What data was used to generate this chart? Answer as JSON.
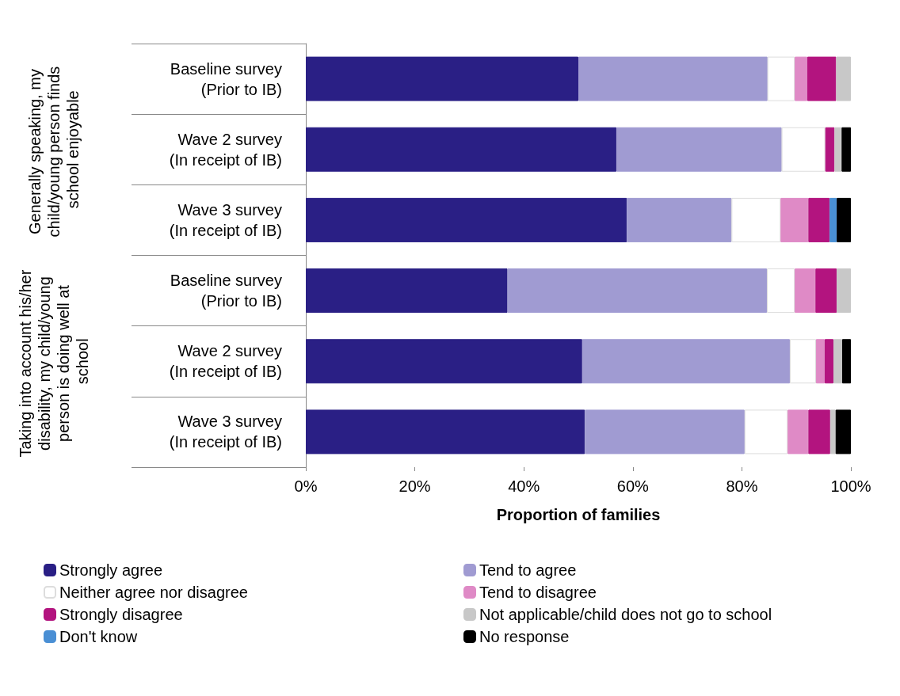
{
  "chart_data": {
    "type": "bar",
    "orientation": "horizontal",
    "stacked": true,
    "categories": [
      "Baseline survey\n(Prior to IB)",
      "Wave 2 survey\n(In receipt of IB)",
      "Wave 3 survey\n(In receipt of IB)",
      "Baseline survey\n(Prior to IB)",
      "Wave 2 survey\n(In receipt of IB)",
      "Wave 3 survey\n(In receipt of IB)"
    ],
    "series": [
      {
        "name": "Strongly agree",
        "color": "#2a1f85",
        "values": [
          50,
          57,
          58.9,
          37,
          50.7,
          51.2
        ]
      },
      {
        "name": "Tend to agree",
        "color": "#a09bd2",
        "values": [
          34.7,
          30.3,
          19.2,
          47.6,
          38.1,
          29.3
        ]
      },
      {
        "name": "Neither agree nor disagree",
        "color": "#ffffff",
        "values": [
          5,
          8,
          9,
          5.1,
          4.8,
          7.9
        ]
      },
      {
        "name": "Tend to disagree",
        "color": "#df8ac6",
        "values": [
          2.3,
          null,
          5.1,
          3.8,
          1.6,
          3.8
        ]
      },
      {
        "name": "Strongly disagree",
        "color": "#b3147f",
        "values": [
          5.3,
          1.7,
          3.9,
          3.9,
          1.6,
          4
        ]
      },
      {
        "name": "Not applicable/child does not go to school",
        "color": "#c8c8c8",
        "values": [
          2.7,
          1.3,
          null,
          2.6,
          1.6,
          1
        ]
      },
      {
        "name": "Don't know",
        "color": "#4a8fd4",
        "values": [
          null,
          null,
          1.3,
          null,
          null,
          null
        ]
      },
      {
        "name": "No response",
        "color": "#000000",
        "values": [
          null,
          1.7,
          2.6,
          null,
          1.6,
          2.8
        ]
      }
    ],
    "xlabel": "Proportion of families",
    "xlim": [
      0,
      100
    ],
    "xticks": [
      {
        "value": 0,
        "label": "0%"
      },
      {
        "value": 20,
        "label": "20%"
      },
      {
        "value": 40,
        "label": "40%"
      },
      {
        "value": 60,
        "label": "60%"
      },
      {
        "value": 80,
        "label": "80%"
      },
      {
        "value": 100,
        "label": "100%"
      }
    ],
    "annotations": [
      "Generally speaking, my child/young person finds school enjoyable",
      "Taking into account his/her disability, my child/young person is doing well at school"
    ],
    "grid": false,
    "legend": "bottom"
  }
}
